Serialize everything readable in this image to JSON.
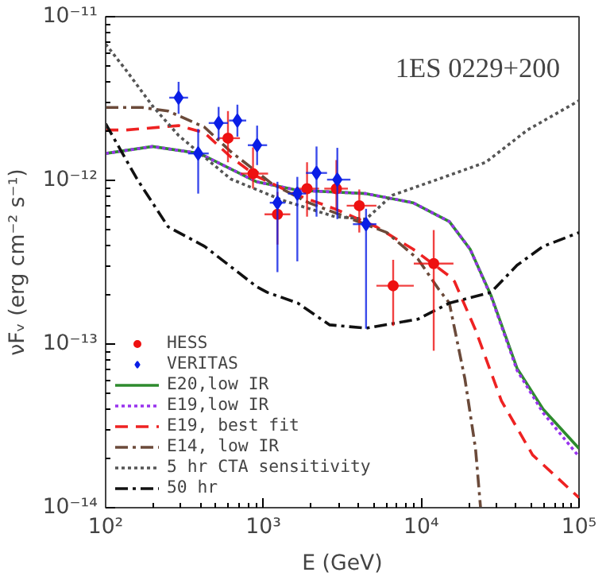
{
  "chart_data": {
    "type": "line",
    "title": "1ES 0229+200",
    "xlabel": "E (GeV)",
    "ylabel": "νFᵥ (erg cm⁻² s⁻¹)",
    "log": "xy",
    "grid": false,
    "legend": "bottom left",
    "xlim": [
      100,
      100000
    ],
    "ylim": [
      1e-14,
      1e-11
    ],
    "xticks": [
      {
        "value": 100,
        "label": "10²"
      },
      {
        "value": 1000,
        "label": "10³"
      },
      {
        "value": 10000,
        "label": "10⁴"
      },
      {
        "value": 100000,
        "label": "10⁵"
      }
    ],
    "yticks": [
      {
        "value": 1e-14,
        "label": "10⁻¹⁴"
      },
      {
        "value": 1e-13,
        "label": "10⁻¹³"
      },
      {
        "value": 1e-12,
        "label": "10⁻¹²"
      },
      {
        "value": 1e-11,
        "label": "10⁻¹¹"
      }
    ],
    "series": [
      {
        "name": "HESS",
        "type": "scatter",
        "marker": "circle",
        "color": "#ee1111",
        "x": [
          596,
          859,
          1227,
          1890,
          2900,
          4050,
          6640,
          12000
        ],
        "values": [
          1.81e-12,
          1.1e-12,
          6.2e-13,
          8.9e-13,
          8.9e-13,
          7e-13,
          2.27e-13,
          3.1e-13
        ],
        "errors": [
          [
            1.29e-12,
            2.65e-12
          ],
          [
            8.9e-13,
            1.59e-12
          ],
          [
            4.05e-13,
            8.5e-13
          ],
          [
            6e-13,
            1.29e-12
          ],
          [
            6.5e-13,
            1.33e-12
          ],
          [
            4.8e-13,
            8.8e-13
          ],
          [
            1.29e-13,
            3.27e-13
          ],
          [
            9.1e-14,
            4.97e-13
          ]
        ],
        "xerrors": [
          [
            513,
            710
          ],
          [
            721,
            1070
          ],
          [
            1016,
            1480
          ],
          [
            1600,
            2250
          ],
          [
            2430,
            3430
          ],
          [
            3370,
            5200
          ],
          [
            5200,
            8970
          ],
          [
            8970,
            16000
          ]
        ]
      },
      {
        "name": "VERITAS",
        "type": "scatter",
        "marker": "diamond",
        "color": "#0a1ee6",
        "x": [
          290,
          386,
          520,
          684,
          912,
          1227,
          1640,
          2170,
          2940,
          4470
        ],
        "values": [
          3.2e-12,
          1.46e-12,
          2.24e-12,
          2.32e-12,
          1.64e-12,
          7.3e-13,
          8.3e-13,
          1.11e-12,
          1.01e-12,
          5.4e-13
        ],
        "errors": [
          [
            2.55e-12,
            4e-12
          ],
          [
            8.3e-13,
            2.06e-12
          ],
          [
            1.78e-12,
            2.81e-12
          ],
          [
            1.85e-12,
            2.9e-12
          ],
          [
            1.24e-12,
            2.16e-12
          ],
          [
            2.75e-13,
            9.8e-13
          ],
          [
            3.2e-13,
            1.05e-12
          ],
          [
            6e-13,
            1.61e-12
          ],
          [
            5.8e-13,
            1.58e-12
          ],
          [
            1.24e-13,
            6.7e-13
          ]
        ],
        "xerrors": [
          [
            253,
            333
          ],
          [
            333,
            450
          ],
          [
            450,
            596
          ],
          [
            605,
            778
          ],
          [
            796,
            1055
          ],
          [
            1097,
            1377
          ],
          [
            1430,
            1860
          ],
          [
            1860,
            2530
          ],
          [
            2530,
            3560
          ],
          [
            3690,
            5200
          ]
        ]
      },
      {
        "name": "E20,low IR",
        "line_style": "solid",
        "color": "#2e8b2e",
        "x": [
          100,
          198,
          393,
          906,
          1650,
          4470,
          8870,
          15070,
          20400,
          27700,
          40500,
          59200,
          100000
        ],
        "values": [
          1.46e-12,
          1.61e-12,
          1.46e-12,
          9.8e-13,
          8.7e-13,
          8.3e-13,
          7.3e-13,
          5.6e-13,
          3.8e-13,
          1.98e-13,
          7.1e-14,
          4e-14,
          2.3e-14
        ]
      },
      {
        "name": "E19,low IR",
        "line_style": "dotted",
        "color": "#9933ee",
        "x": [
          100,
          198,
          393,
          906,
          1650,
          4470,
          8870,
          15070,
          20400,
          27700,
          40500,
          59200,
          100000
        ],
        "values": [
          1.46e-12,
          1.61e-12,
          1.46e-12,
          9.8e-13,
          8.7e-13,
          8.3e-13,
          7.3e-13,
          5.6e-13,
          3.8e-13,
          1.95e-13,
          6.9e-14,
          3.8e-14,
          2.05e-14
        ]
      },
      {
        "name": "E19, best fit",
        "line_style": "dashed",
        "color": "#ee2222",
        "x": [
          100,
          135,
          290,
          424,
          620,
          906,
          1540,
          2830,
          5200,
          8870,
          15070,
          16250,
          22080,
          32210,
          50800,
          100000
        ],
        "values": [
          2.03e-12,
          2.03e-12,
          2.16e-12,
          1.95e-12,
          1.39e-12,
          1.06e-12,
          8.3e-13,
          6.7e-13,
          5.2e-13,
          3.8e-13,
          2.6e-13,
          2.41e-13,
          1.22e-13,
          4.5e-14,
          2.1e-14,
          1.15e-14
        ]
      },
      {
        "name": "E14, low IR",
        "line_style": "dashdot",
        "color": "#6b4a3a",
        "x": [
          100,
          170,
          249,
          424,
          620,
          1137,
          1937,
          3300,
          6050,
          9550,
          12950,
          15070,
          18930,
          22080,
          23770
        ],
        "values": [
          2.79e-12,
          2.79e-12,
          2.65e-12,
          2.11e-12,
          1.5e-12,
          9.5e-13,
          7.3e-13,
          6e-13,
          4.8e-13,
          3.3e-13,
          2.15e-13,
          1.78e-13,
          6.1e-14,
          2.3e-14,
          1e-14
        ]
      },
      {
        "name": "5 hr CTA sensitivity",
        "line_style": "dotted",
        "color": "#555555",
        "x": [
          100,
          135,
          198,
          290,
          620,
          1325,
          2830,
          4470,
          6530,
          12950,
          25650,
          47100,
          100000
        ],
        "values": [
          6.8e-12,
          4.7e-12,
          2.85e-12,
          1.88e-12,
          1.02e-12,
          7.55e-13,
          6e-13,
          5.8e-13,
          8.1e-13,
          1.02e-12,
          1.29e-12,
          2.03e-12,
          3.07e-12
        ]
      },
      {
        "name": "50 hr",
        "line_style": "dashdot",
        "color": "#111111",
        "x": [
          100,
          158,
          249,
          424,
          906,
          1055,
          1650,
          2620,
          4470,
          9550,
          15070,
          27700,
          40500,
          59200,
          100000
        ],
        "values": [
          2.22e-12,
          1.02e-12,
          5.2e-13,
          3.95e-13,
          2.24e-13,
          2.07e-13,
          1.78e-13,
          1.31e-13,
          1.25e-13,
          1.42e-13,
          1.78e-13,
          2.07e-13,
          3.03e-13,
          3.95e-13,
          4.8e-13
        ]
      }
    ]
  }
}
